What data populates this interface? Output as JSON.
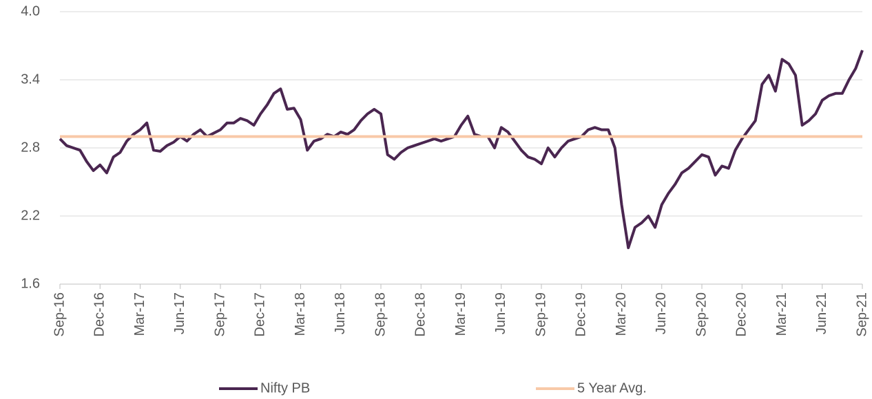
{
  "chart_data": {
    "type": "line",
    "categories": [
      "Sep-16",
      null,
      null,
      null,
      null,
      null,
      "Dec-16",
      null,
      null,
      null,
      null,
      null,
      "Mar-17",
      null,
      null,
      null,
      null,
      null,
      "Jun-17",
      null,
      null,
      null,
      null,
      null,
      "Sep-17",
      null,
      null,
      null,
      null,
      null,
      "Dec-17",
      null,
      null,
      null,
      null,
      null,
      "Mar-18",
      null,
      null,
      null,
      null,
      null,
      "Jun-18",
      null,
      null,
      null,
      null,
      null,
      "Sep-18",
      null,
      null,
      null,
      null,
      null,
      "Dec-18",
      null,
      null,
      null,
      null,
      null,
      "Mar-19",
      null,
      null,
      null,
      null,
      null,
      "Jun-19",
      null,
      null,
      null,
      null,
      null,
      "Sep-19",
      null,
      null,
      null,
      null,
      null,
      "Dec-19",
      null,
      null,
      null,
      null,
      null,
      "Mar-20",
      null,
      null,
      null,
      null,
      null,
      "Jun-20",
      null,
      null,
      null,
      null,
      null,
      "Sep-20",
      null,
      null,
      null,
      null,
      null,
      "Dec-20",
      null,
      null,
      null,
      null,
      null,
      "Mar-21",
      null,
      null,
      null,
      null,
      null,
      "Jun-21",
      null,
      null,
      null,
      null,
      null,
      "Sep-21"
    ],
    "series": [
      {
        "name": "Nifty PB",
        "color": "#4a2650",
        "values": [
          2.88,
          2.82,
          2.8,
          2.78,
          2.68,
          2.6,
          2.65,
          2.58,
          2.72,
          2.76,
          2.86,
          2.92,
          2.96,
          3.02,
          2.78,
          2.77,
          2.82,
          2.85,
          2.9,
          2.86,
          2.92,
          2.96,
          2.9,
          2.93,
          2.96,
          3.02,
          3.02,
          3.06,
          3.04,
          3.0,
          3.1,
          3.18,
          3.28,
          3.32,
          3.14,
          3.15,
          3.05,
          2.78,
          2.86,
          2.88,
          2.92,
          2.9,
          2.94,
          2.92,
          2.96,
          3.04,
          3.1,
          3.14,
          3.1,
          2.74,
          2.7,
          2.76,
          2.8,
          2.82,
          2.84,
          2.86,
          2.88,
          2.86,
          2.88,
          2.9,
          3.0,
          3.08,
          2.92,
          2.9,
          2.9,
          2.8,
          2.98,
          2.94,
          2.86,
          2.78,
          2.72,
          2.7,
          2.66,
          2.8,
          2.72,
          2.8,
          2.86,
          2.88,
          2.9,
          2.96,
          2.98,
          2.96,
          2.96,
          2.8,
          2.3,
          1.92,
          2.1,
          2.14,
          2.2,
          2.1,
          2.3,
          2.4,
          2.48,
          2.58,
          2.62,
          2.68,
          2.74,
          2.72,
          2.56,
          2.64,
          2.62,
          2.78,
          2.88,
          2.96,
          3.04,
          3.36,
          3.44,
          3.3,
          3.58,
          3.54,
          3.44,
          3.0,
          3.04,
          3.1,
          3.22,
          3.26,
          3.28,
          3.28,
          3.4,
          3.5,
          3.66
        ]
      },
      {
        "name": "5 Year Avg.",
        "color": "#f8c9a8",
        "values": [
          2.9,
          2.9,
          2.9,
          2.9,
          2.9,
          2.9,
          2.9,
          2.9,
          2.9,
          2.9,
          2.9,
          2.9,
          2.9,
          2.9,
          2.9,
          2.9,
          2.9,
          2.9,
          2.9,
          2.9,
          2.9,
          2.9,
          2.9,
          2.9,
          2.9,
          2.9,
          2.9,
          2.9,
          2.9,
          2.9,
          2.9,
          2.9,
          2.9,
          2.9,
          2.9,
          2.9,
          2.9,
          2.9,
          2.9,
          2.9,
          2.9,
          2.9,
          2.9,
          2.9,
          2.9,
          2.9,
          2.9,
          2.9,
          2.9,
          2.9,
          2.9,
          2.9,
          2.9,
          2.9,
          2.9,
          2.9,
          2.9,
          2.9,
          2.9,
          2.9,
          2.9,
          2.9,
          2.9,
          2.9,
          2.9,
          2.9,
          2.9,
          2.9,
          2.9,
          2.9,
          2.9,
          2.9,
          2.9,
          2.9,
          2.9,
          2.9,
          2.9,
          2.9,
          2.9,
          2.9,
          2.9,
          2.9,
          2.9,
          2.9,
          2.9,
          2.9,
          2.9,
          2.9,
          2.9,
          2.9,
          2.9,
          2.9,
          2.9,
          2.9,
          2.9,
          2.9,
          2.9,
          2.9,
          2.9,
          2.9,
          2.9,
          2.9,
          2.9,
          2.9,
          2.9,
          2.9,
          2.9,
          2.9,
          2.9,
          2.9,
          2.9,
          2.9,
          2.9,
          2.9,
          2.9,
          2.9,
          2.9,
          2.9,
          2.9,
          2.9,
          2.9
        ]
      }
    ],
    "ylim": [
      1.6,
      4.0
    ],
    "yticks": [
      {
        "value": 1.6,
        "label": "1.6"
      },
      {
        "value": 2.2,
        "label": "2.2"
      },
      {
        "value": 2.8,
        "label": "2.8"
      },
      {
        "value": 3.4,
        "label": "3.4"
      },
      {
        "value": 4.0,
        "label": "4.0"
      }
    ],
    "grid": true
  }
}
